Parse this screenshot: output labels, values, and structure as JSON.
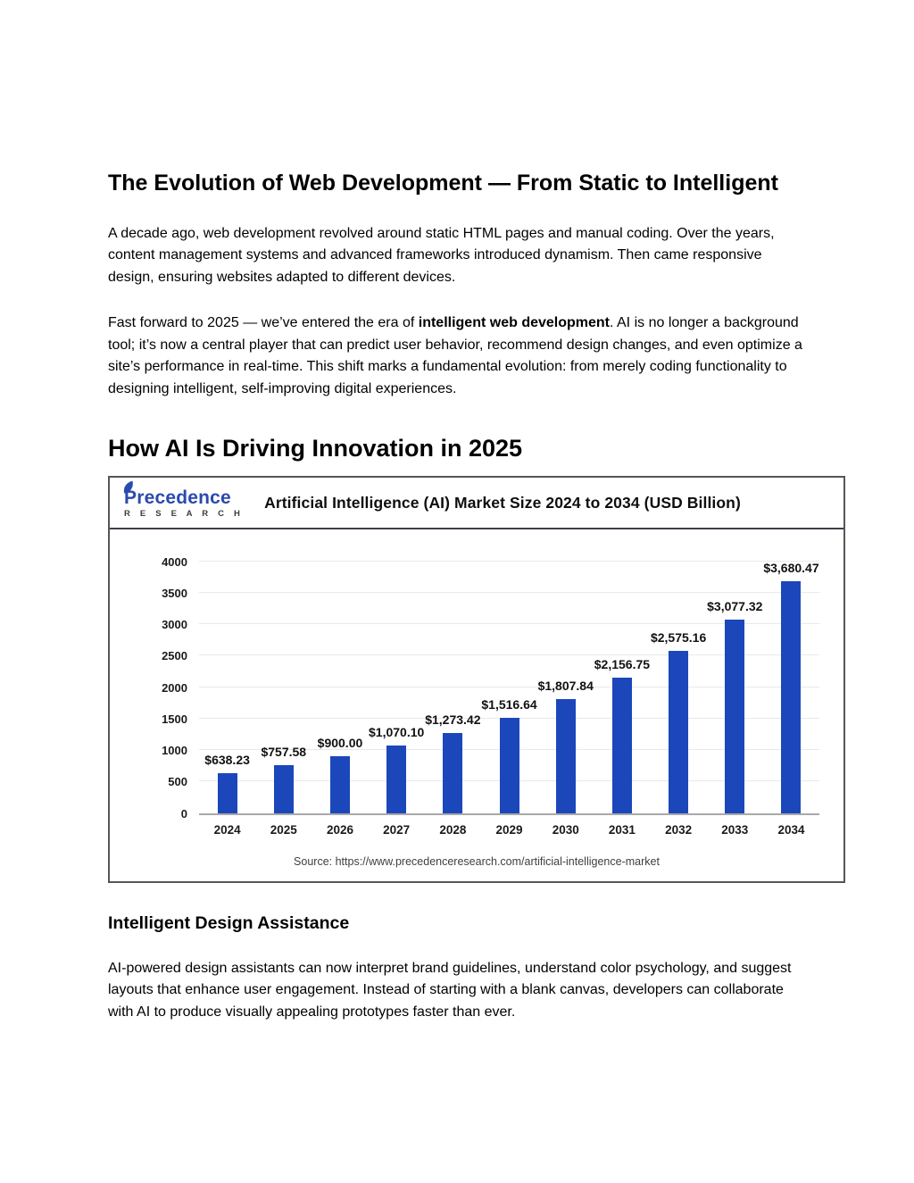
{
  "article": {
    "title": "The Evolution of Web Development — From Static to Intelligent",
    "paragraph1": "A decade ago, web development revolved around static HTML pages and manual coding. Over the years, content management systems and advanced frameworks introduced dynamism. Then came responsive design, ensuring websites adapted to different devices.",
    "paragraph2_part1": "Fast forward to 2025 — we’ve entered the era of ",
    "paragraph2_bold": "intelligent web development",
    "paragraph2_part2": ". AI is no longer a background tool; it’s now a central player that can predict user behavior, recommend design changes, and even optimize a site’s performance in real-time. This shift marks a fundamental evolution: from merely coding functionality to designing intelligent, self-improving digital experiences.",
    "section2_title": "How AI Is Driving Innovation in 2025",
    "subsection_title": "Intelligent Design Assistance",
    "paragraph3": "AI-powered design assistants can now interpret brand guidelines, understand color psychology, and suggest layouts that enhance user engagement. Instead of starting with a blank canvas, developers can collaborate with AI to produce visually appealing prototypes faster than ever."
  },
  "chart": {
    "logo_name": "Precedence",
    "logo_subtitle": "R E S E A R C H",
    "title": "Artificial Intelligence (AI) Market Size 2024 to 2034 (USD Billion)",
    "source": "Source: https://www.precedenceresearch.com/artificial-intelligence-market",
    "colors": {
      "bar": "#1b47bb",
      "logo_blue": "#2c49ae",
      "header_rule": "#3b4049"
    }
  },
  "chart_data": {
    "type": "bar",
    "title": "Artificial Intelligence (AI) Market Size 2024 to 2034 (USD Billion)",
    "categories": [
      "2024",
      "2025",
      "2026",
      "2027",
      "2028",
      "2029",
      "2030",
      "2031",
      "2032",
      "2033",
      "2034"
    ],
    "values": [
      638.23,
      757.58,
      900.0,
      1070.1,
      1273.42,
      1516.64,
      1807.84,
      2156.75,
      2575.16,
      3077.32,
      3680.47
    ],
    "labels": [
      "$638.23",
      "$757.58",
      "$900.00",
      "$1,070.10",
      "$1,273.42",
      "$1,516.64",
      "$1,807.84",
      "$2,156.75",
      "$2,575.16",
      "$3,077.32",
      "$3,680.47"
    ],
    "xlabel": "",
    "ylabel": "",
    "ylim": [
      0,
      4000
    ],
    "ytick_step": 500,
    "grid": true,
    "legend": false,
    "bar_color": "#1b47bb"
  }
}
